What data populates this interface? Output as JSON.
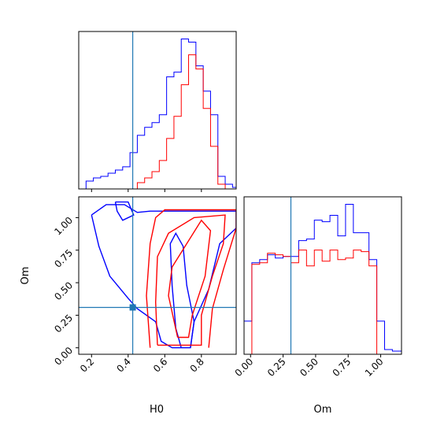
{
  "chart_data": {
    "type": "corner",
    "parameters": [
      "H0",
      "Om"
    ],
    "xlabel": "H0",
    "ylabel": "Om",
    "om_xlabel": "Om",
    "truth": {
      "H0": 0.425,
      "Om": 0.31
    },
    "colors": {
      "series_a": "#0000ff",
      "series_b": "#ff0000",
      "truth": "#1f77b4"
    },
    "h0_range": [
      0.13,
      0.99
    ],
    "om_range": [
      -0.05,
      1.16
    ],
    "h0_ticks": [
      {
        "v": 0.2,
        "label": "0.2"
      },
      {
        "v": 0.4,
        "label": "0.4"
      },
      {
        "v": 0.6,
        "label": "0.6"
      },
      {
        "v": 0.8,
        "label": "0.8"
      }
    ],
    "om_ticks": [
      {
        "v": 0.0,
        "label": "0.00"
      },
      {
        "v": 0.25,
        "label": "0.25"
      },
      {
        "v": 0.5,
        "label": "0.50"
      },
      {
        "v": 0.75,
        "label": "0.75"
      },
      {
        "v": 1.0,
        "label": "1.00"
      }
    ],
    "h0_hist": {
      "edges": [
        0.13,
        0.17,
        0.21,
        0.25,
        0.29,
        0.33,
        0.37,
        0.41,
        0.45,
        0.49,
        0.53,
        0.57,
        0.61,
        0.65,
        0.69,
        0.73,
        0.77,
        0.81,
        0.85,
        0.89,
        0.93,
        0.97,
        0.99
      ],
      "series": [
        {
          "name": "",
          "values": [
            0,
            0.05,
            0.07,
            0.08,
            0.1,
            0.12,
            0.14,
            0.23,
            0.34,
            0.39,
            0.42,
            0.47,
            0.71,
            0.74,
            0.95,
            0.93,
            0.78,
            0.62,
            0.47,
            0.08,
            0.03,
            0.01
          ]
        },
        {
          "name": "",
          "values": [
            0,
            0,
            0,
            0,
            0,
            0,
            0,
            0,
            0.04,
            0.07,
            0.11,
            0.18,
            0.32,
            0.46,
            0.66,
            0.85,
            0.76,
            0.51,
            0.27,
            0.03,
            0,
            0
          ]
        }
      ]
    },
    "om_hist": {
      "edges": [
        -0.05,
        0.01,
        0.07,
        0.13,
        0.19,
        0.25,
        0.31,
        0.37,
        0.43,
        0.49,
        0.55,
        0.61,
        0.67,
        0.73,
        0.79,
        0.85,
        0.91,
        0.97,
        1.03,
        1.09,
        1.16
      ],
      "series": [
        {
          "name": "",
          "values": [
            0.21,
            0.58,
            0.6,
            0.63,
            0.61,
            0.62,
            0.62,
            0.72,
            0.73,
            0.85,
            0.84,
            0.88,
            0.75,
            0.95,
            0.77,
            0.77,
            0.6,
            0.21,
            0.03,
            0.02
          ]
        },
        {
          "name": "",
          "values": [
            0,
            0.57,
            0.58,
            0.64,
            0.63,
            0.62,
            0.58,
            0.66,
            0.56,
            0.66,
            0.59,
            0.66,
            0.6,
            0.61,
            0.66,
            0.65,
            0.56,
            0,
            0,
            0
          ]
        }
      ]
    },
    "contours": [
      {
        "series": 0,
        "points": [
          [
            0.33,
            1.12
          ],
          [
            0.4,
            1.12
          ],
          [
            0.43,
            1.02
          ],
          [
            0.37,
            0.98
          ],
          [
            0.34,
            1.05
          ],
          [
            0.33,
            1.12
          ]
        ]
      },
      {
        "series": 0,
        "points": [
          [
            0.2,
            1.02
          ],
          [
            0.28,
            1.1
          ],
          [
            0.38,
            1.1
          ],
          [
            0.45,
            1.04
          ],
          [
            0.52,
            1.05
          ],
          [
            0.99,
            1.05
          ],
          [
            0.99,
            0.92
          ],
          [
            0.9,
            0.8
          ],
          [
            0.84,
            0.45
          ],
          [
            0.76,
            0.2
          ],
          [
            0.74,
            0.0
          ],
          [
            0.64,
            0.0
          ],
          [
            0.58,
            0.05
          ],
          [
            0.55,
            0.2
          ],
          [
            0.45,
            0.3
          ],
          [
            0.4,
            0.38
          ],
          [
            0.3,
            0.55
          ],
          [
            0.24,
            0.78
          ],
          [
            0.2,
            1.02
          ]
        ]
      },
      {
        "series": 0,
        "points": [
          [
            0.69,
            0.0
          ],
          [
            0.66,
            0.15
          ],
          [
            0.64,
            0.48
          ],
          [
            0.63,
            0.8
          ],
          [
            0.66,
            0.88
          ],
          [
            0.7,
            0.78
          ],
          [
            0.72,
            0.48
          ],
          [
            0.76,
            0.2
          ],
          [
            0.74,
            0.0
          ]
        ]
      },
      {
        "series": 1,
        "points": [
          [
            0.52,
            0.0
          ],
          [
            0.5,
            0.4
          ],
          [
            0.52,
            0.8
          ],
          [
            0.55,
            1.0
          ],
          [
            0.6,
            1.06
          ],
          [
            0.99,
            1.06
          ],
          [
            0.99,
            0.92
          ],
          [
            0.92,
            0.6
          ],
          [
            0.86,
            0.3
          ],
          [
            0.84,
            0.0
          ]
        ]
      },
      {
        "series": 1,
        "points": [
          [
            0.56,
            0.02
          ],
          [
            0.55,
            0.35
          ],
          [
            0.56,
            0.7
          ],
          [
            0.62,
            0.88
          ],
          [
            0.76,
            1.0
          ],
          [
            0.93,
            1.02
          ],
          [
            0.92,
            0.8
          ],
          [
            0.86,
            0.55
          ],
          [
            0.8,
            0.25
          ],
          [
            0.8,
            0.02
          ],
          [
            0.56,
            0.02
          ]
        ]
      },
      {
        "series": 1,
        "points": [
          [
            0.67,
            0.08
          ],
          [
            0.62,
            0.4
          ],
          [
            0.64,
            0.62
          ],
          [
            0.72,
            0.8
          ],
          [
            0.8,
            0.98
          ],
          [
            0.85,
            0.9
          ],
          [
            0.82,
            0.55
          ],
          [
            0.75,
            0.25
          ],
          [
            0.73,
            0.08
          ],
          [
            0.67,
            0.08
          ]
        ]
      }
    ]
  }
}
